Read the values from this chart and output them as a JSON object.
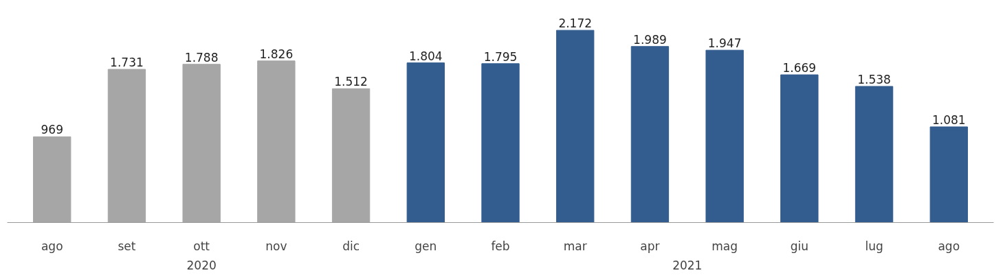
{
  "chart_data": {
    "type": "bar",
    "categories": [
      "ago",
      "set",
      "ott",
      "nov",
      "dic",
      "gen",
      "feb",
      "mar",
      "apr",
      "mag",
      "giu",
      "lug",
      "ago"
    ],
    "values": [
      969,
      1731,
      1788,
      1826,
      1512,
      1804,
      1795,
      2172,
      1989,
      1947,
      1669,
      1538,
      1081
    ],
    "colors": [
      "#a6a6a6",
      "#a6a6a6",
      "#a6a6a6",
      "#a6a6a6",
      "#a6a6a6",
      "#335d8f",
      "#335d8f",
      "#335d8f",
      "#335d8f",
      "#335d8f",
      "#335d8f",
      "#335d8f",
      "#335d8f"
    ],
    "value_labels": [
      "969",
      "1.731",
      "1.788",
      "1.826",
      "1.512",
      "1.804",
      "1.795",
      "2.172",
      "1.989",
      "1.947",
      "1.669",
      "1.538",
      "1.081"
    ],
    "annotations": [
      "2020",
      "2021"
    ],
    "tick_labels": "x",
    "grid": false
  }
}
